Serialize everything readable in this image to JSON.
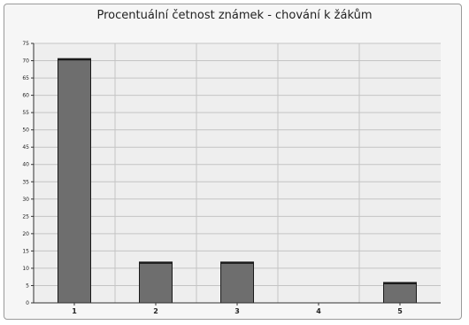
{
  "chart_data": {
    "type": "bar",
    "title": "Procentuální četnost známek - chování k žákům",
    "xlabel": "",
    "ylabel": "",
    "categories": [
      "1",
      "2",
      "3",
      "4",
      "5"
    ],
    "values": [
      70.6,
      11.8,
      11.8,
      0,
      5.9
    ],
    "ylim": [
      0,
      75
    ],
    "yticks": [
      0,
      5,
      10,
      15,
      20,
      25,
      30,
      35,
      40,
      45,
      50,
      55,
      60,
      65,
      70,
      75
    ],
    "grid": true,
    "legend": "none",
    "colors": {
      "bar": "#6e6e6e",
      "bar_border": "#1a1a1a",
      "plot_background": "#eeeeee",
      "gridline": "#c4c4c4",
      "axis": "#333333"
    }
  }
}
